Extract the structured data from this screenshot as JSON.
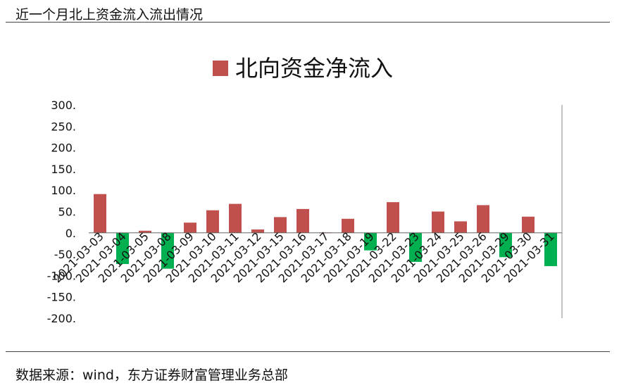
{
  "page": {
    "title": "近一个月北上资金流入流出情况",
    "source": "数据来源：wind，东方证券财富管理业务总部"
  },
  "colors": {
    "positive": "#c0504d",
    "negative": "#00b050",
    "axis": "#666666",
    "rule": "#444444"
  },
  "chart_data": {
    "type": "bar",
    "title": "",
    "legend": {
      "label": "北向资金净流入",
      "position": "top-center"
    },
    "categories": [
      "2021-03-03",
      "2021-03-04",
      "2021-03-05",
      "2021-03-08",
      "2021-03-09",
      "2021-03-10",
      "2021-03-11",
      "2021-03-12",
      "2021-03-15",
      "2021-03-16",
      "2021-03-17",
      "2021-03-18",
      "2021-03-19",
      "2021-03-22",
      "2021-03-23",
      "2021-03-24",
      "2021-03-25",
      "2021-03-26",
      "2021-03-29",
      "2021-03-30",
      "2021-03-31"
    ],
    "series": [
      {
        "name": "北向资金净流入",
        "values": [
          91,
          -73,
          5,
          -84,
          24,
          53,
          68,
          8,
          37,
          56,
          1,
          33,
          -41,
          72,
          -68,
          50,
          27,
          65,
          -57,
          38,
          -78
        ]
      }
    ],
    "ylim": [
      -200,
      300
    ],
    "yticks": [
      "300.",
      "250.",
      "200.",
      "150.",
      "100.",
      "50.",
      "0.",
      "-50.",
      "-100.",
      "-150.",
      "-200."
    ],
    "ytick_values": [
      300,
      250,
      200,
      150,
      100,
      50,
      0,
      -50,
      -100,
      -150,
      -200
    ],
    "grid": false
  }
}
